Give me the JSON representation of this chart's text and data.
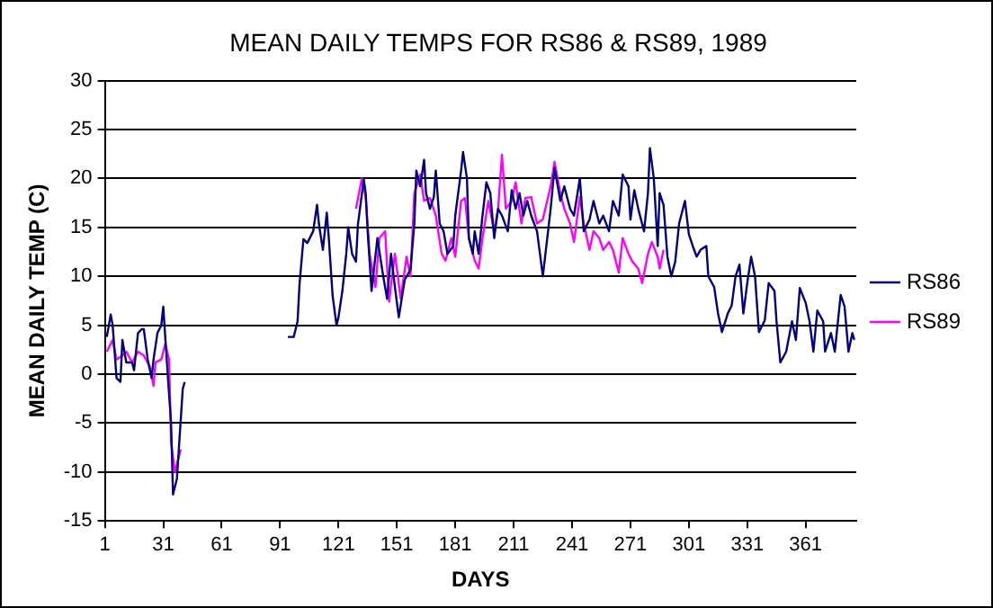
{
  "chart_data": {
    "type": "line",
    "title": "MEAN DAILY TEMPS FOR RS86 & RS89, 1989",
    "xlabel": "DAYS",
    "ylabel": "MEAN DAILY TEMP (C)",
    "xlim": [
      1,
      387
    ],
    "xticks": [
      1,
      31,
      61,
      91,
      121,
      151,
      181,
      211,
      241,
      271,
      301,
      331,
      361
    ],
    "ylim": [
      -15,
      30
    ],
    "yticks": [
      -15,
      -10,
      -5,
      0,
      5,
      10,
      15,
      20,
      25,
      30
    ],
    "grid": "y",
    "legend": "right",
    "marker": "none",
    "line_style": "solid",
    "series": [
      {
        "name": "RS86",
        "color": "#000080",
        "x": [
          2,
          4,
          5,
          7,
          9,
          10,
          12,
          15,
          16,
          18,
          20,
          21,
          23,
          25,
          26,
          28,
          30,
          31,
          33,
          35,
          36,
          38,
          40,
          41,
          42,
          60,
          95,
          98,
          100,
          101,
          103,
          105,
          106,
          108,
          110,
          111,
          113,
          115,
          116,
          118,
          120,
          121,
          123,
          125,
          126,
          128,
          130,
          131,
          134,
          135,
          136,
          138,
          141,
          144,
          146,
          148,
          150,
          152,
          155,
          158,
          160,
          161,
          163,
          165,
          166,
          168,
          170,
          171,
          173,
          175,
          177,
          180,
          181,
          184,
          185,
          187,
          188,
          190,
          191,
          193,
          195,
          197,
          199,
          201,
          203,
          205,
          208,
          210,
          212,
          214,
          216,
          218,
          220,
          223,
          226,
          230,
          232,
          235,
          237,
          240,
          242,
          245,
          247,
          250,
          252,
          255,
          257,
          260,
          262,
          265,
          267,
          270,
          271,
          273,
          275,
          278,
          280,
          281,
          283,
          285,
          286,
          288,
          290,
          292,
          294,
          296,
          299,
          301,
          303,
          305,
          307,
          310,
          311,
          314,
          316,
          318,
          321,
          323,
          325,
          327,
          329,
          331,
          333,
          335,
          337,
          340,
          342,
          345,
          346,
          348,
          351,
          354,
          356,
          358,
          361,
          363,
          365,
          367,
          370,
          371,
          374,
          376,
          379,
          381,
          383,
          385,
          386
        ],
        "values": [
          3.8,
          6.1,
          5,
          -0.4,
          -0.8,
          3.5,
          1.2,
          1.2,
          0.4,
          4.2,
          4.6,
          4.6,
          1.5,
          -0.4,
          1.5,
          4.2,
          5,
          6.9,
          0.8,
          -5,
          -12.3,
          -10.7,
          -4.6,
          -1.5,
          -0.8,
          null,
          3.8,
          3.8,
          5.4,
          9.2,
          13.8,
          13.4,
          13.8,
          14.6,
          17.3,
          15.3,
          12.7,
          16.5,
          14,
          8,
          5,
          5.8,
          8.5,
          12.3,
          15,
          12.3,
          11.5,
          15.3,
          19.9,
          18.5,
          14.6,
          8.5,
          13.9,
          10,
          7.7,
          12.3,
          8.9,
          5.8,
          9.6,
          10.7,
          15.4,
          20.8,
          19.2,
          21.9,
          18.5,
          16.9,
          18.1,
          20.8,
          15.4,
          14.6,
          12.3,
          13.1,
          16.2,
          20.8,
          22.7,
          20,
          13.9,
          12.3,
          14.6,
          12.3,
          16.2,
          19.6,
          18.5,
          13.9,
          16.9,
          16.2,
          14.6,
          18.8,
          16.9,
          18.5,
          16.2,
          17.7,
          16.2,
          14.6,
          10,
          16.9,
          21.1,
          17.7,
          19.2,
          16.9,
          16.2,
          20,
          14.6,
          15.8,
          17.7,
          15.4,
          16.2,
          14.6,
          17.7,
          16.2,
          20.4,
          19.2,
          15.8,
          18.8,
          16.9,
          14.6,
          18.5,
          23.1,
          20,
          13.1,
          18.5,
          17.3,
          12,
          10,
          11.5,
          15.4,
          17.7,
          14.3,
          13.1,
          12,
          12.7,
          13.1,
          10,
          8.9,
          6.2,
          4.3,
          6.2,
          7,
          10,
          11.2,
          6.2,
          9.3,
          12,
          10,
          4.3,
          5.5,
          9.3,
          8.5,
          5.5,
          1.2,
          2.3,
          5.4,
          3.5,
          8.8,
          7.3,
          5.4,
          2.3,
          6.5,
          5.4,
          2.3,
          4.2,
          2.3,
          8.1,
          6.9,
          2.3,
          4.2,
          3.5
        ]
      },
      {
        "name": "RS89",
        "color": "#ff00ff",
        "x": [
          2,
          5,
          7,
          10,
          12,
          15,
          18,
          21,
          24,
          26,
          27,
          30,
          32,
          34,
          35,
          37,
          38,
          40,
          80,
          130,
          133,
          135,
          137,
          140,
          142,
          145,
          147,
          150,
          153,
          156,
          158,
          160,
          163,
          165,
          168,
          171,
          174,
          176,
          179,
          181,
          184,
          186,
          188,
          191,
          193,
          195,
          198,
          201,
          203,
          205,
          207,
          210,
          212,
          215,
          217,
          220,
          223,
          226,
          230,
          232,
          235,
          237,
          240,
          242,
          245,
          247,
          250,
          252,
          255,
          257,
          260,
          262,
          265,
          267,
          270,
          272,
          275,
          277,
          280,
          282,
          285,
          286,
          288
        ],
        "values": [
          2.3,
          3.5,
          1.5,
          1.9,
          2.3,
          1.2,
          2.3,
          1.9,
          0.8,
          -1.2,
          1.2,
          1.5,
          3.1,
          1.5,
          -6.9,
          -10,
          -9.2,
          -7.7,
          null,
          16.9,
          20,
          18.1,
          12.3,
          8.9,
          13.9,
          14.6,
          7.4,
          12.3,
          7.7,
          12,
          10,
          18.5,
          20.4,
          17.7,
          18,
          16.2,
          12.3,
          11.6,
          13.9,
          12,
          17.7,
          18,
          13.9,
          11.6,
          10.8,
          13.9,
          17.7,
          14.6,
          16.9,
          22.4,
          16.9,
          17.7,
          19.6,
          15.4,
          18,
          18.1,
          15.4,
          15.8,
          19.2,
          21.7,
          18.5,
          16.9,
          15.4,
          13.5,
          18.1,
          15.4,
          12.7,
          14.6,
          13.9,
          12.7,
          13.5,
          12.7,
          10.4,
          13.9,
          12.3,
          11.5,
          10.8,
          9.3,
          12.3,
          13.5,
          12,
          10.8,
          12.7
        ]
      }
    ]
  }
}
